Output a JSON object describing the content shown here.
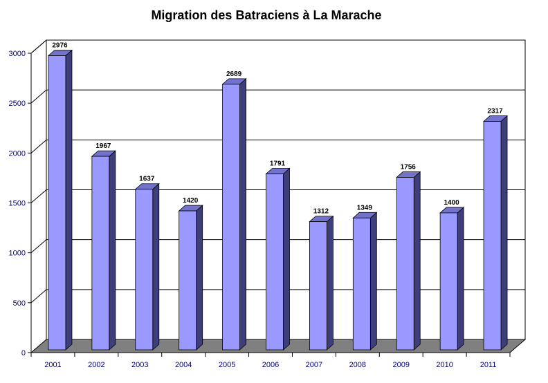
{
  "chart_data": {
    "type": "bar",
    "title": "Migration des Batraciens à La Marache",
    "xlabel": "",
    "ylabel": "",
    "categories": [
      "2001",
      "2002",
      "2003",
      "2004",
      "2005",
      "2006",
      "2007",
      "2008",
      "2009",
      "2010",
      "2011"
    ],
    "values": [
      2976,
      1967,
      1637,
      1420,
      2689,
      1791,
      1312,
      1349,
      1756,
      1400,
      2317
    ],
    "ylim": [
      0,
      3000
    ],
    "yticks": [
      "0",
      "500",
      "1000",
      "1500",
      "2000",
      "2500",
      "3000"
    ],
    "grid": true,
    "legend": "none",
    "style": "3d-bar",
    "colors": {
      "bar_front": "#9999ff",
      "bar_top": "#7373cc",
      "bar_side": "#3e3e7a",
      "floor": "#808080",
      "axis_text": "#000080"
    }
  }
}
